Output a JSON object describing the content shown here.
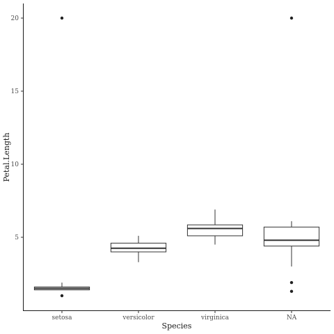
{
  "chart_data": {
    "type": "boxplot",
    "title": "",
    "xlabel": "Species",
    "ylabel": "Petal.Length",
    "ylim": [
      0,
      21
    ],
    "yticks": [
      5,
      10,
      15,
      20
    ],
    "grid": false,
    "categories": [
      "setosa",
      "versicolor",
      "virginica",
      "NA"
    ],
    "boxes": [
      {
        "category": "setosa",
        "whisker_low": 1.4,
        "q1": 1.4,
        "median": 1.5,
        "q3": 1.6,
        "whisker_high": 1.9,
        "outliers": [
          1.0,
          20.0
        ]
      },
      {
        "category": "versicolor",
        "whisker_low": 3.3,
        "q1": 4.0,
        "median": 4.25,
        "q3": 4.6,
        "whisker_high": 5.1,
        "outliers": []
      },
      {
        "category": "virginica",
        "whisker_low": 4.5,
        "q1": 5.1,
        "median": 5.6,
        "q3": 5.85,
        "whisker_high": 6.9,
        "outliers": []
      },
      {
        "category": "NA",
        "whisker_low": 3.0,
        "q1": 4.4,
        "median": 4.8,
        "q3": 5.7,
        "whisker_high": 6.1,
        "outliers": [
          1.3,
          1.9,
          20.0
        ]
      }
    ]
  }
}
